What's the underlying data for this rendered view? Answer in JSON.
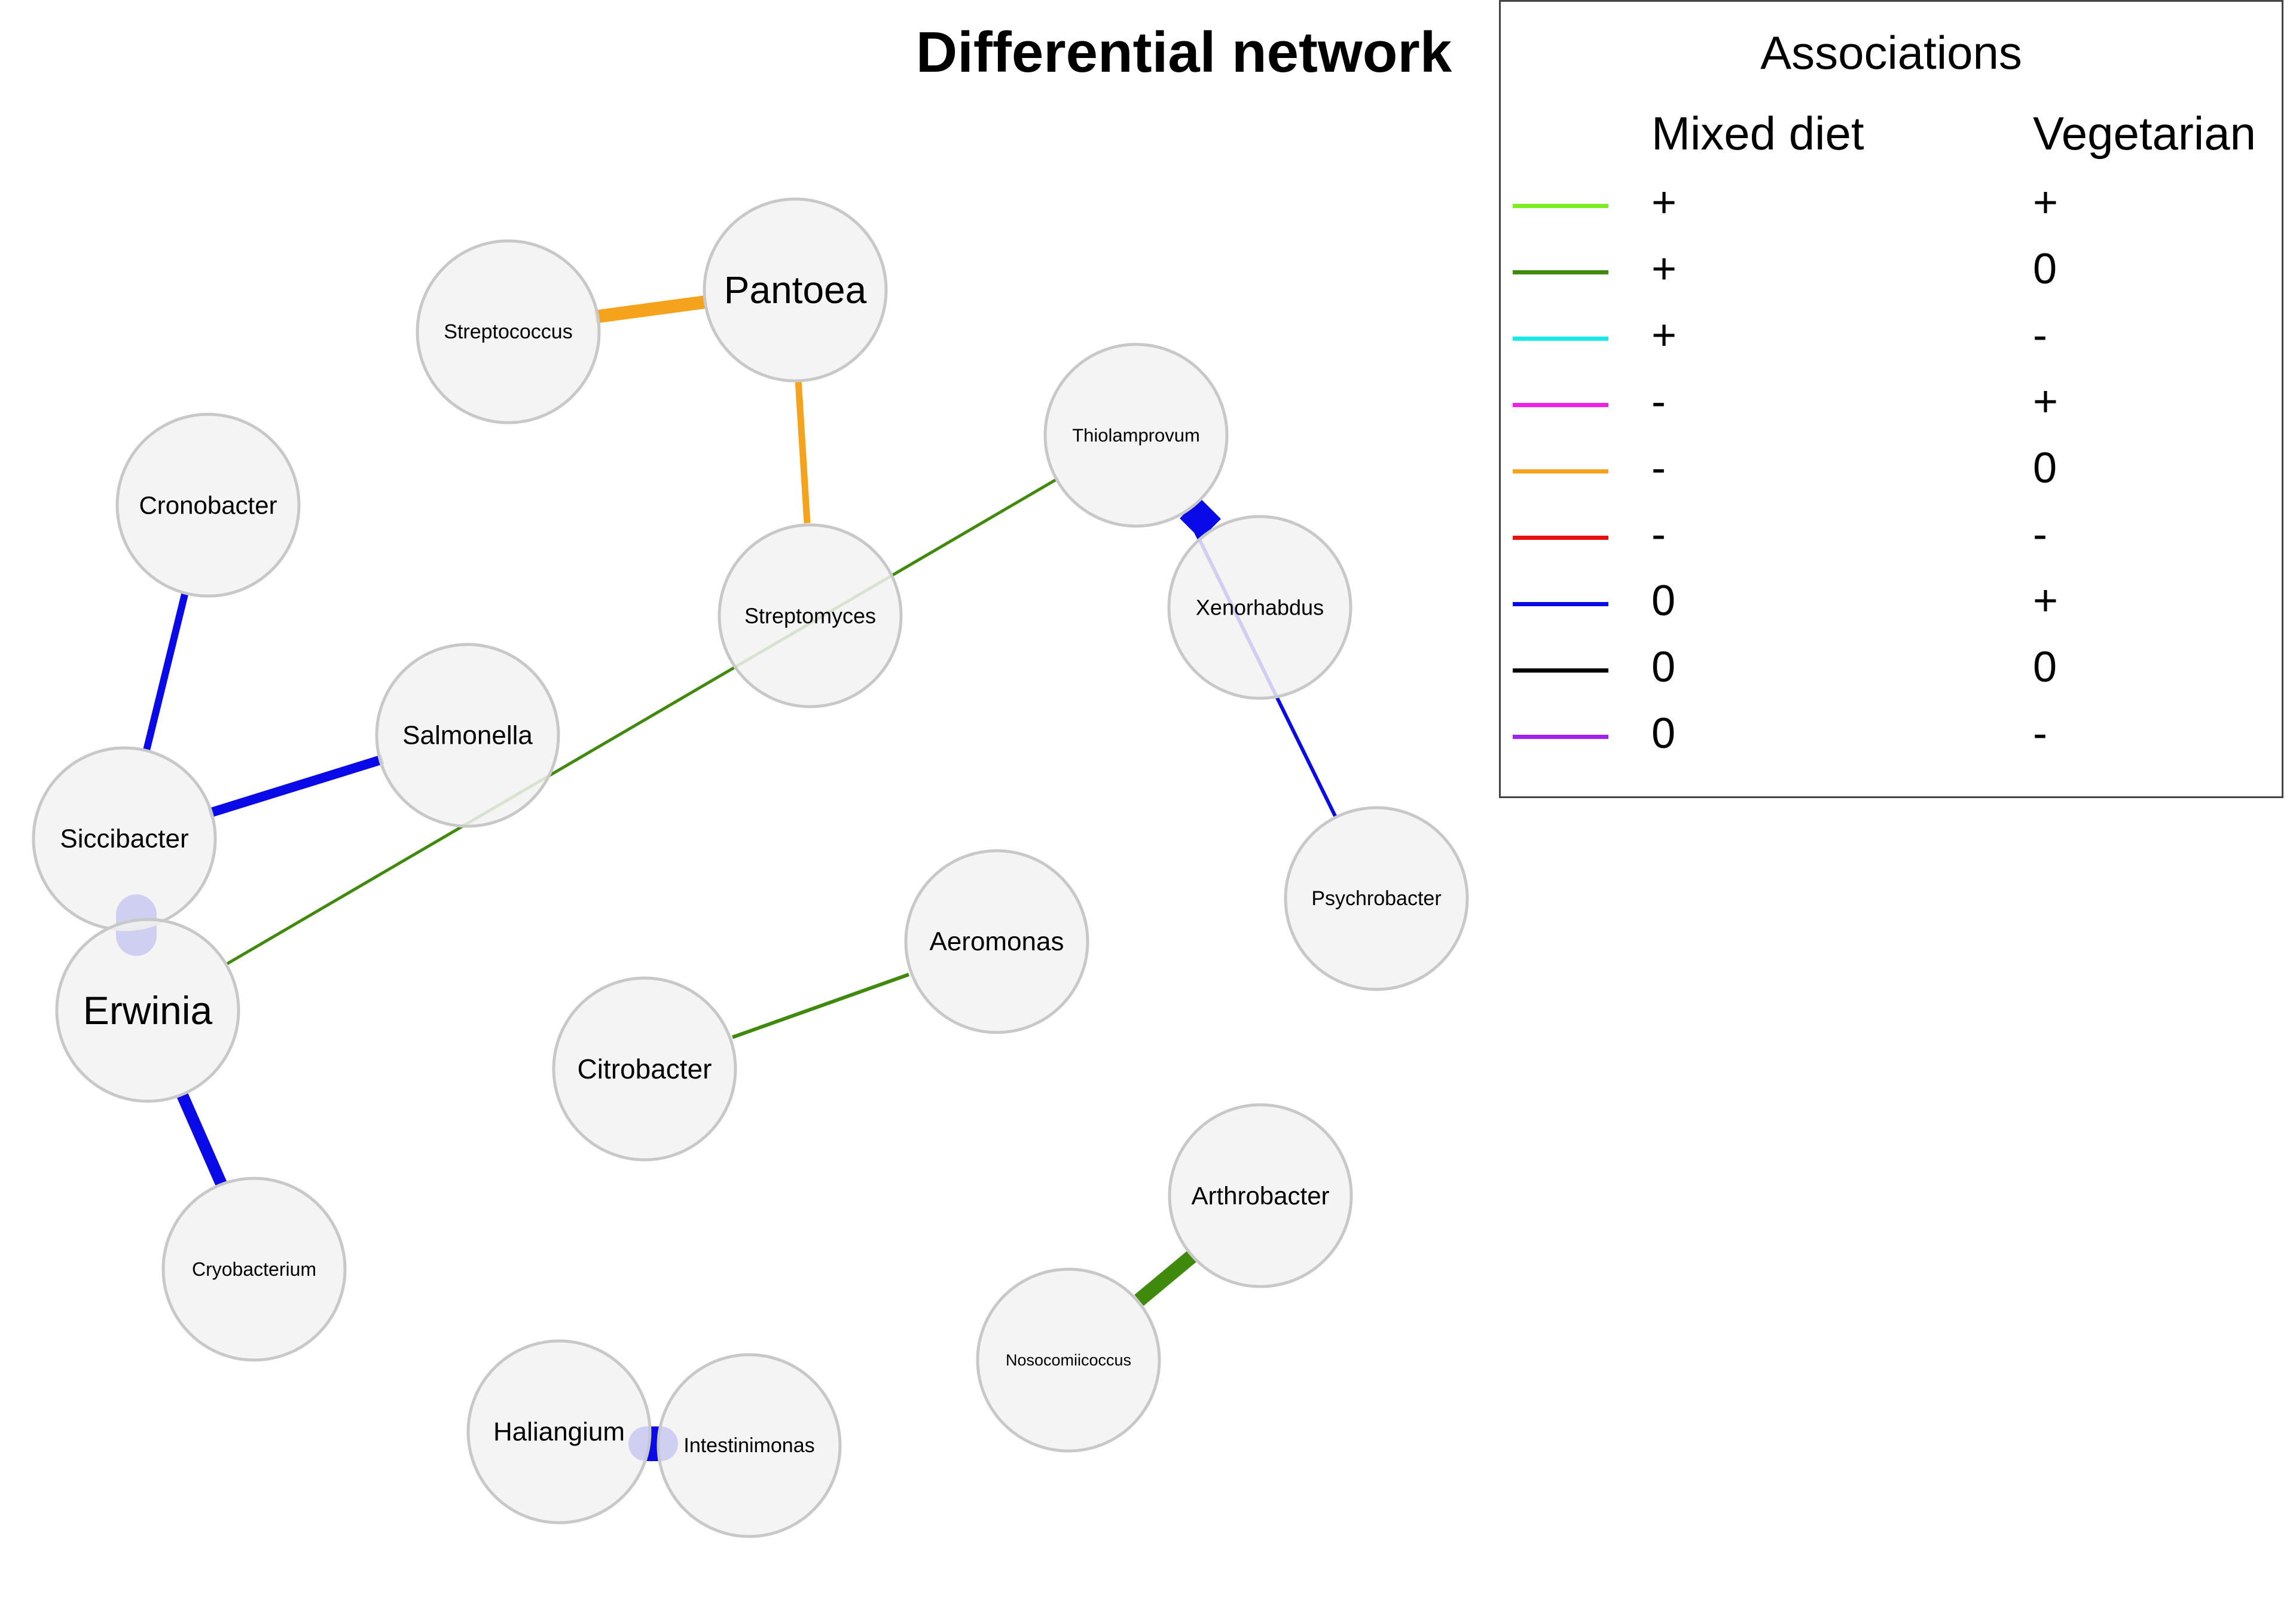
{
  "title": "Differential network",
  "legend": {
    "title": "Associations",
    "col1": "Mixed diet",
    "col2": "Vegetarian",
    "rows": [
      {
        "color": "#7CEE1F",
        "mixed": "+",
        "veg": "+"
      },
      {
        "color": "#3F8A0C",
        "mixed": "+",
        "veg": "0"
      },
      {
        "color": "#18E8E8",
        "mixed": "+",
        "veg": "-"
      },
      {
        "color": "#F01FE8",
        "mixed": "-",
        "veg": "+"
      },
      {
        "color": "#F5A21C",
        "mixed": "-",
        "veg": "0"
      },
      {
        "color": "#E81010",
        "mixed": "-",
        "veg": "-"
      },
      {
        "color": "#0A0AE8",
        "mixed": "0",
        "veg": "+"
      },
      {
        "color": "#000000",
        "mixed": "0",
        "veg": "0"
      },
      {
        "color": "#A020F0",
        "mixed": "0",
        "veg": "-"
      }
    ]
  },
  "nodes": [
    {
      "id": "streptococcus",
      "label": "Streptococcus"
    },
    {
      "id": "pantoea",
      "label": "Pantoea"
    },
    {
      "id": "thiolamprovum",
      "label": "Thiolamprovum"
    },
    {
      "id": "cronobacter",
      "label": "Cronobacter"
    },
    {
      "id": "streptomyces",
      "label": "Streptomyces"
    },
    {
      "id": "xenorhabdus",
      "label": "Xenorhabdus"
    },
    {
      "id": "salmonella",
      "label": "Salmonella"
    },
    {
      "id": "siccibacter",
      "label": "Siccibacter"
    },
    {
      "id": "psychrobacter",
      "label": "Psychrobacter"
    },
    {
      "id": "aeromonas",
      "label": "Aeromonas"
    },
    {
      "id": "erwinia",
      "label": "Erwinia"
    },
    {
      "id": "citrobacter",
      "label": "Citrobacter"
    },
    {
      "id": "arthrobacter",
      "label": "Arthrobacter"
    },
    {
      "id": "cryobacterium",
      "label": "Cryobacterium"
    },
    {
      "id": "nosocomiicoccus",
      "label": "Nosocomiicoccus"
    },
    {
      "id": "haliangium",
      "label": "Haliangium"
    },
    {
      "id": "intestinimonas",
      "label": "Intestinimonas"
    }
  ],
  "edges": [
    {
      "from": "streptococcus",
      "to": "pantoea",
      "association": "- / 0"
    },
    {
      "from": "pantoea",
      "to": "streptomyces",
      "association": "- / 0"
    },
    {
      "from": "thiolamprovum",
      "to": "erwinia",
      "association": "+ / 0"
    },
    {
      "from": "thiolamprovum",
      "to": "xenorhabdus",
      "association": "0 / +"
    },
    {
      "from": "xenorhabdus",
      "to": "psychrobacter",
      "association": "0 / +"
    },
    {
      "from": "cronobacter",
      "to": "siccibacter",
      "association": "0 / +"
    },
    {
      "from": "salmonella",
      "to": "siccibacter",
      "association": "0 / +"
    },
    {
      "from": "siccibacter",
      "to": "erwinia",
      "association": "0 / +"
    },
    {
      "from": "erwinia",
      "to": "cryobacterium",
      "association": "0 / +"
    },
    {
      "from": "citrobacter",
      "to": "aeromonas",
      "association": "+ / 0"
    },
    {
      "from": "arthrobacter",
      "to": "nosocomiicoccus",
      "association": "+ / 0"
    },
    {
      "from": "haliangium",
      "to": "intestinimonas",
      "association": "0 / +"
    }
  ]
}
